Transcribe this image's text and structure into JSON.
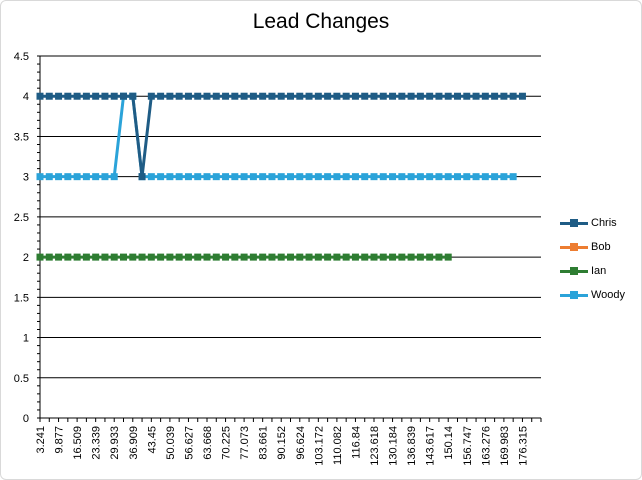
{
  "chart_data": {
    "type": "line",
    "title": "Lead Changes",
    "xlabel": "",
    "ylabel": "",
    "ylim": [
      0,
      4.5
    ],
    "y_ticks": [
      "0",
      "0.5",
      "1",
      "1.5",
      "2",
      "2.5",
      "3",
      "3.5",
      "4",
      "4.5"
    ],
    "x_tick_labels": [
      "3.241",
      "9.877",
      "16.509",
      "23.339",
      "29.933",
      "36.909",
      "43.45",
      "50.039",
      "56.627",
      "63.668",
      "70.225",
      "77.073",
      "83.661",
      "90.152",
      "96.624",
      "103.172",
      "110.082",
      "116.84",
      "123.618",
      "130.184",
      "136.839",
      "143.617",
      "150.14",
      "156.747",
      "163.276",
      "169.983",
      "176.315"
    ],
    "grid": true,
    "legend_position": "right",
    "series": [
      {
        "name": "Chris",
        "color": "#1f5c85",
        "values": [
          4,
          4,
          4,
          4,
          4,
          4,
          4,
          4,
          4,
          4,
          4,
          3,
          4,
          4,
          4,
          4,
          4,
          4,
          4,
          4,
          4,
          4,
          4,
          4,
          4,
          4,
          4,
          4,
          4,
          4,
          4,
          4,
          4,
          4,
          4,
          4,
          4,
          4,
          4,
          4,
          4,
          4,
          4,
          4,
          4,
          4,
          4,
          4,
          4,
          4,
          4,
          4,
          4
        ]
      },
      {
        "name": "Bob",
        "color": "#ed7d31",
        "values": []
      },
      {
        "name": "Ian",
        "color": "#2e7d32",
        "values": [
          2,
          2,
          2,
          2,
          2,
          2,
          2,
          2,
          2,
          2,
          2,
          2,
          2,
          2,
          2,
          2,
          2,
          2,
          2,
          2,
          2,
          2,
          2,
          2,
          2,
          2,
          2,
          2,
          2,
          2,
          2,
          2,
          2,
          2,
          2,
          2,
          2,
          2,
          2,
          2,
          2,
          2,
          2,
          2,
          2
        ]
      },
      {
        "name": "Woody",
        "color": "#2ba3d9",
        "values": [
          3,
          3,
          3,
          3,
          3,
          3,
          3,
          3,
          3,
          4,
          4,
          3,
          3,
          3,
          3,
          3,
          3,
          3,
          3,
          3,
          3,
          3,
          3,
          3,
          3,
          3,
          3,
          3,
          3,
          3,
          3,
          3,
          3,
          3,
          3,
          3,
          3,
          3,
          3,
          3,
          3,
          3,
          3,
          3,
          3,
          3,
          3,
          3,
          3,
          3,
          3,
          3
        ]
      }
    ]
  }
}
